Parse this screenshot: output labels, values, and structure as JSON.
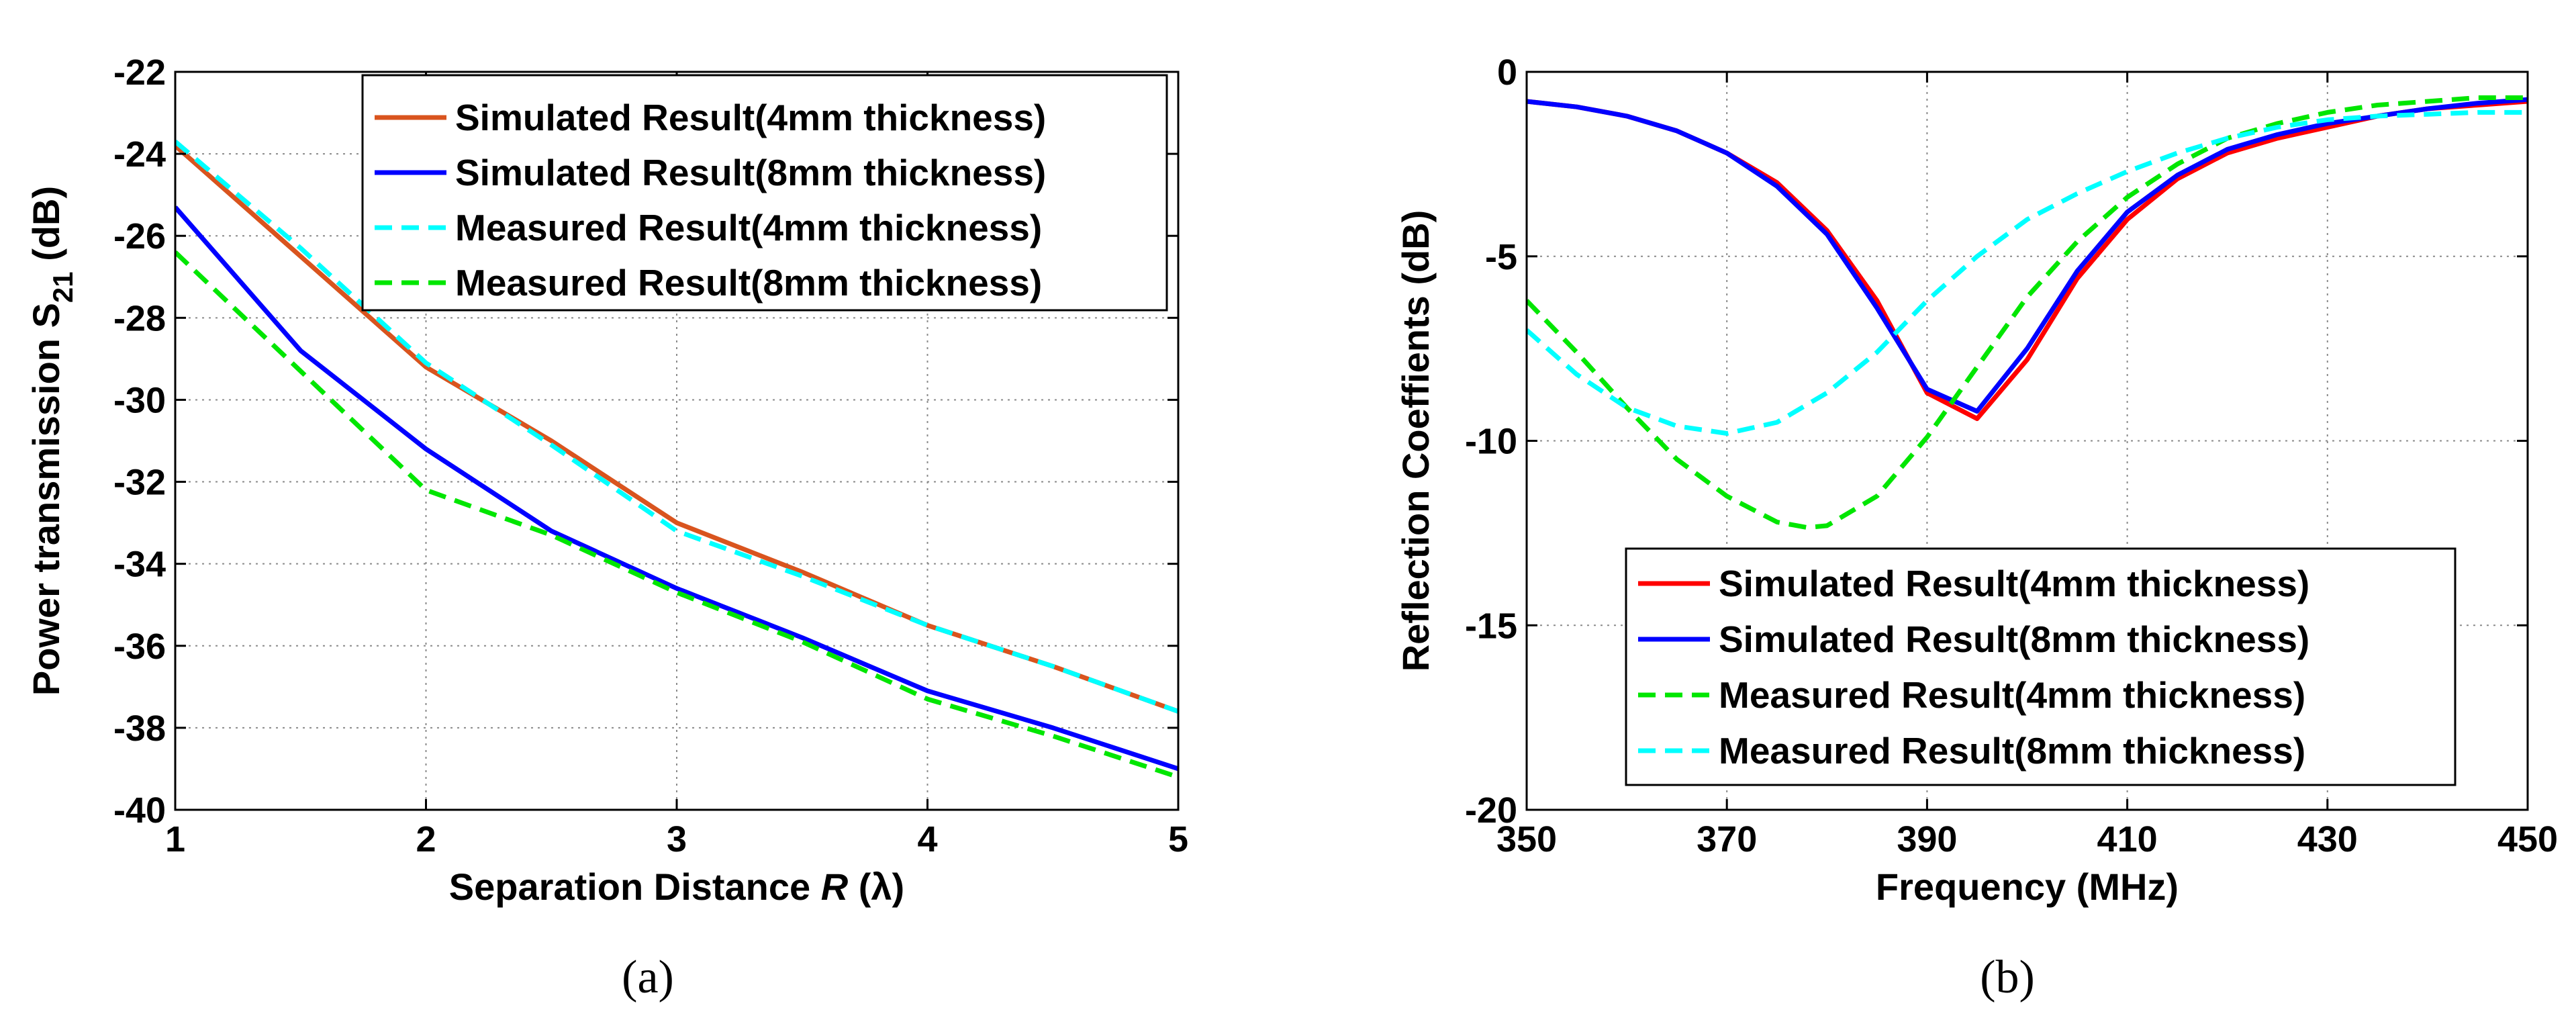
{
  "chart_data": [
    {
      "type": "line",
      "caption": "(a)",
      "xlabel": "Separation Distance R (λ)",
      "xlabel_parts": [
        "Separation Distance ",
        "R",
        " (λ)"
      ],
      "ylabel": "Power transmission S21 (dB)",
      "ylabel_parts": [
        "Power transmission S",
        "21",
        " (dB)"
      ],
      "xlim": [
        1,
        5
      ],
      "ylim": [
        -40,
        -22
      ],
      "xticks": [
        1,
        2,
        3,
        4,
        5
      ],
      "yticks": [
        -40,
        -38,
        -36,
        -34,
        -32,
        -30,
        -28,
        -26,
        -24,
        -22
      ],
      "grid": true,
      "legend_position": "top-right",
      "series": [
        {
          "name": "Simulated Result(4mm thickness)",
          "color": "#d9541e",
          "dashed": false,
          "x": [
            1,
            1.5,
            2,
            2.5,
            3,
            3.5,
            4,
            4.5,
            5
          ],
          "y": [
            -23.8,
            -26.5,
            -29.2,
            -31.0,
            -33.0,
            -34.2,
            -35.5,
            -36.5,
            -37.6
          ]
        },
        {
          "name": "Simulated Result(8mm thickness)",
          "color": "#0000ff",
          "dashed": false,
          "x": [
            1,
            1.5,
            2,
            2.5,
            3,
            3.5,
            4,
            4.5,
            5
          ],
          "y": [
            -25.3,
            -28.8,
            -31.2,
            -33.2,
            -34.6,
            -35.8,
            -37.1,
            -38.0,
            -39.0
          ]
        },
        {
          "name": "Measured Result(4mm thickness)",
          "color": "#00ffff",
          "dashed": true,
          "x": [
            1,
            1.5,
            2,
            2.5,
            3,
            3.5,
            4,
            4.5,
            5
          ],
          "y": [
            -23.7,
            -26.3,
            -29.1,
            -31.1,
            -33.2,
            -34.3,
            -35.5,
            -36.5,
            -37.6
          ]
        },
        {
          "name": "Measured Result(8mm thickness)",
          "color": "#00e600",
          "dashed": true,
          "x": [
            1,
            1.5,
            2,
            2.5,
            3,
            3.5,
            4,
            4.5,
            5
          ],
          "y": [
            -26.4,
            -29.3,
            -32.2,
            -33.3,
            -34.7,
            -35.9,
            -37.3,
            -38.2,
            -39.2
          ]
        }
      ]
    },
    {
      "type": "line",
      "caption": "(b)",
      "xlabel": "Frequency (MHz)",
      "ylabel": "Reflection Coeffients (dB)",
      "xlim": [
        350,
        450
      ],
      "ylim": [
        -20,
        0
      ],
      "xticks": [
        350,
        370,
        390,
        410,
        430,
        450
      ],
      "yticks": [
        -20,
        -15,
        -10,
        -5,
        0
      ],
      "grid": true,
      "legend_position": "bottom-right",
      "series": [
        {
          "name": "Simulated Result(4mm thickness)",
          "color": "#ff0000",
          "dashed": false,
          "x": [
            350,
            355,
            360,
            365,
            370,
            375,
            380,
            385,
            390,
            395,
            400,
            405,
            410,
            415,
            420,
            425,
            430,
            435,
            440,
            445,
            450
          ],
          "y": [
            -0.8,
            -0.95,
            -1.2,
            -1.6,
            -2.2,
            -3.0,
            -4.3,
            -6.2,
            -8.7,
            -9.4,
            -7.8,
            -5.6,
            -4.0,
            -2.9,
            -2.2,
            -1.8,
            -1.5,
            -1.2,
            -1.0,
            -0.9,
            -0.8
          ]
        },
        {
          "name": "Simulated Result(8mm thickness)",
          "color": "#0000ff",
          "dashed": false,
          "x": [
            350,
            355,
            360,
            365,
            370,
            375,
            380,
            385,
            390,
            395,
            400,
            405,
            410,
            415,
            420,
            425,
            430,
            435,
            440,
            445,
            450
          ],
          "y": [
            -0.8,
            -0.95,
            -1.2,
            -1.6,
            -2.2,
            -3.1,
            -4.4,
            -6.4,
            -8.6,
            -9.2,
            -7.5,
            -5.4,
            -3.8,
            -2.8,
            -2.1,
            -1.7,
            -1.4,
            -1.2,
            -1.0,
            -0.85,
            -0.75
          ]
        },
        {
          "name": "Measured Result(4mm thickness)",
          "color": "#00e600",
          "dashed": true,
          "x": [
            350,
            355,
            360,
            365,
            370,
            375,
            378,
            380,
            385,
            390,
            395,
            400,
            405,
            410,
            415,
            420,
            425,
            430,
            435,
            440,
            445,
            450
          ],
          "y": [
            -6.2,
            -7.6,
            -9.1,
            -10.5,
            -11.5,
            -12.2,
            -12.35,
            -12.3,
            -11.5,
            -9.9,
            -8.0,
            -6.1,
            -4.6,
            -3.4,
            -2.5,
            -1.8,
            -1.4,
            -1.1,
            -0.9,
            -0.8,
            -0.7,
            -0.7
          ]
        },
        {
          "name": "Measured Result(8mm thickness)",
          "color": "#00ffff",
          "dashed": true,
          "x": [
            350,
            355,
            360,
            365,
            370,
            375,
            380,
            385,
            390,
            395,
            400,
            405,
            410,
            415,
            420,
            425,
            430,
            435,
            440,
            445,
            450
          ],
          "y": [
            -7.0,
            -8.2,
            -9.1,
            -9.6,
            -9.8,
            -9.5,
            -8.7,
            -7.6,
            -6.2,
            -5.0,
            -4.0,
            -3.3,
            -2.7,
            -2.2,
            -1.8,
            -1.5,
            -1.3,
            -1.2,
            -1.15,
            -1.1,
            -1.1
          ]
        }
      ]
    }
  ]
}
